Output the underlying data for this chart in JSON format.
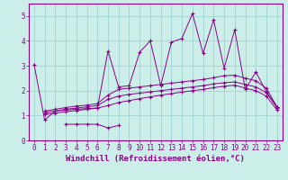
{
  "xlabel": "Windchill (Refroidissement éolien,°C)",
  "xlim": [
    -0.5,
    23.5
  ],
  "ylim": [
    0,
    5.5
  ],
  "xticks": [
    0,
    1,
    2,
    3,
    4,
    5,
    6,
    7,
    8,
    9,
    10,
    11,
    12,
    13,
    14,
    15,
    16,
    17,
    18,
    19,
    20,
    21,
    22,
    23
  ],
  "yticks": [
    0,
    1,
    2,
    3,
    4,
    5
  ],
  "background_color": "#cceee8",
  "line_color": "#880088",
  "grid_color": "#99cccc",
  "lines": [
    {
      "x": [
        0,
        1,
        2,
        3,
        4,
        5,
        6,
        7,
        8,
        9,
        10,
        11,
        12,
        13,
        14,
        15,
        16,
        17,
        18,
        19,
        20,
        21,
        22,
        23
      ],
      "y": [
        3.05,
        0.82,
        1.18,
        1.22,
        1.25,
        1.28,
        1.3,
        3.6,
        2.15,
        2.2,
        3.55,
        4.0,
        2.2,
        3.95,
        4.1,
        5.1,
        3.5,
        4.85,
        2.9,
        4.45,
        2.05,
        2.75,
        1.95,
        1.35
      ]
    },
    {
      "x": [
        3,
        4,
        5,
        6,
        7,
        8
      ],
      "y": [
        0.65,
        0.65,
        0.65,
        0.65,
        0.5,
        0.6
      ]
    },
    {
      "x": [
        1,
        2,
        3,
        4,
        5,
        6,
        7,
        8,
        9,
        10,
        11,
        12,
        13,
        14,
        15,
        16,
        17,
        18,
        19,
        20,
        21,
        22,
        23
      ],
      "y": [
        1.18,
        1.25,
        1.32,
        1.38,
        1.42,
        1.48,
        1.82,
        2.05,
        2.1,
        2.15,
        2.2,
        2.25,
        2.3,
        2.35,
        2.4,
        2.45,
        2.52,
        2.6,
        2.62,
        2.5,
        2.4,
        2.1,
        1.35
      ]
    },
    {
      "x": [
        1,
        2,
        3,
        4,
        5,
        6,
        7,
        8,
        9,
        10,
        11,
        12,
        13,
        14,
        15,
        16,
        17,
        18,
        19,
        20,
        21,
        22,
        23
      ],
      "y": [
        1.12,
        1.18,
        1.25,
        1.3,
        1.35,
        1.4,
        1.65,
        1.78,
        1.85,
        1.9,
        1.95,
        2.0,
        2.05,
        2.1,
        2.15,
        2.2,
        2.27,
        2.32,
        2.35,
        2.25,
        2.15,
        1.92,
        1.32
      ]
    },
    {
      "x": [
        1,
        2,
        3,
        4,
        5,
        6,
        7,
        8,
        9,
        10,
        11,
        12,
        13,
        14,
        15,
        16,
        17,
        18,
        19,
        20,
        21,
        22,
        23
      ],
      "y": [
        1.05,
        1.1,
        1.15,
        1.2,
        1.25,
        1.3,
        1.4,
        1.52,
        1.6,
        1.68,
        1.75,
        1.82,
        1.88,
        1.94,
        2.0,
        2.05,
        2.12,
        2.18,
        2.22,
        2.1,
        2.0,
        1.78,
        1.22
      ]
    }
  ],
  "font_color": "#880088",
  "tick_fontsize": 5.5,
  "label_fontsize": 6.5
}
